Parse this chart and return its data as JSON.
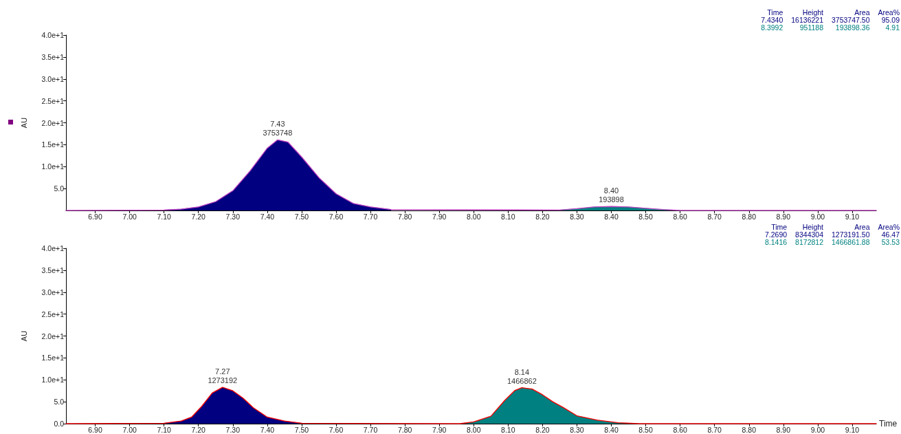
{
  "chart_data": [
    {
      "type": "area",
      "ylabel": "AU",
      "xlim": [
        6.815,
        9.17
      ],
      "ylim": [
        0,
        40
      ],
      "xticks": [
        {
          "value": 6.9,
          "label": "6.90"
        },
        {
          "value": 7.0,
          "label": "7.00"
        },
        {
          "value": 7.1,
          "label": "7.10"
        },
        {
          "value": 7.2,
          "label": "7.20"
        },
        {
          "value": 7.3,
          "label": "7.30"
        },
        {
          "value": 7.4,
          "label": "7.40"
        },
        {
          "value": 7.5,
          "label": "7.50"
        },
        {
          "value": 7.6,
          "label": "7.60"
        },
        {
          "value": 7.7,
          "label": "7.70"
        },
        {
          "value": 7.8,
          "label": "7.80"
        },
        {
          "value": 7.9,
          "label": "7.90"
        },
        {
          "value": 8.0,
          "label": "8.00"
        },
        {
          "value": 8.1,
          "label": "8.10"
        },
        {
          "value": 8.2,
          "label": "8.20"
        },
        {
          "value": 8.3,
          "label": "8.30"
        },
        {
          "value": 8.4,
          "label": "8.40"
        },
        {
          "value": 8.5,
          "label": "8.50"
        },
        {
          "value": 8.6,
          "label": "8.60"
        },
        {
          "value": 8.7,
          "label": "8.70"
        },
        {
          "value": 8.8,
          "label": "8.80"
        },
        {
          "value": 8.9,
          "label": "8.90"
        },
        {
          "value": 9.0,
          "label": "9.00"
        },
        {
          "value": 9.1,
          "label": "9.10"
        }
      ],
      "yticks": [
        {
          "value": 5,
          "label": "5.0"
        },
        {
          "value": 10,
          "label": "1.0e+1"
        },
        {
          "value": 15,
          "label": "1.5e+1"
        },
        {
          "value": 20,
          "label": "2.0e+1"
        },
        {
          "value": 25,
          "label": "2.5e+1"
        },
        {
          "value": 30,
          "label": "3.0e+1"
        },
        {
          "value": 35,
          "label": "3.5e+1"
        },
        {
          "value": 40,
          "label": "4.0e+1"
        }
      ],
      "grid": false,
      "marker": "none",
      "series": [
        {
          "color": "#000080",
          "x": [
            7.1,
            7.15,
            7.2,
            7.25,
            7.3,
            7.35,
            7.4,
            7.43,
            7.46,
            7.5,
            7.55,
            7.6,
            7.65,
            7.7,
            7.76
          ],
          "values": [
            0.1,
            0.3,
            0.8,
            2.0,
            4.5,
            9.0,
            14.2,
            16.1,
            15.6,
            12.2,
            7.5,
            3.8,
            1.6,
            0.8,
            0.2
          ]
        },
        {
          "color": "#008080",
          "x": [
            8.25,
            8.3,
            8.35,
            8.4,
            8.45,
            8.5,
            8.55,
            8.6
          ],
          "values": [
            0.1,
            0.4,
            0.8,
            0.9,
            0.8,
            0.5,
            0.2,
            0
          ]
        },
        {
          "type": "line",
          "color": "#c040c0",
          "x": [
            6.815,
            7.1,
            7.15,
            7.2,
            7.25,
            7.3,
            7.35,
            7.4,
            7.43,
            7.46,
            7.5,
            7.55,
            7.6,
            7.65,
            7.7,
            7.76,
            8.25,
            8.3,
            8.35,
            8.4,
            8.45,
            8.5,
            8.55,
            8.6,
            9.17
          ],
          "values": [
            0,
            0.1,
            0.3,
            0.8,
            2.0,
            4.5,
            9.0,
            14.2,
            16.1,
            15.6,
            12.2,
            7.5,
            3.8,
            1.6,
            0.8,
            0.2,
            0.1,
            0.4,
            0.8,
            0.9,
            0.8,
            0.5,
            0.2,
            0,
            0
          ]
        }
      ],
      "annotations": [
        {
          "text": "7.43\n3753748",
          "x": 7.43,
          "y": 16.1
        },
        {
          "text": "8.40\n193898",
          "x": 8.4,
          "y": 0.95
        },
        "Time Height Area Area%",
        "7.4340 16136221 3753747.50 95.09",
        "8.3992 951188 193898.36 4.91"
      ]
    },
    {
      "type": "area",
      "ylabel": "AU",
      "xlabel": "Time",
      "xlim": [
        6.815,
        9.17
      ],
      "ylim": [
        0,
        40
      ],
      "xticks": [
        {
          "value": 6.9,
          "label": "6.90"
        },
        {
          "value": 7.0,
          "label": "7.00"
        },
        {
          "value": 7.1,
          "label": "7.10"
        },
        {
          "value": 7.2,
          "label": "7.20"
        },
        {
          "value": 7.3,
          "label": "7.30"
        },
        {
          "value": 7.4,
          "label": "7.40"
        },
        {
          "value": 7.5,
          "label": "7.50"
        },
        {
          "value": 7.6,
          "label": "7.60"
        },
        {
          "value": 7.7,
          "label": "7.70"
        },
        {
          "value": 7.8,
          "label": "7.80"
        },
        {
          "value": 7.9,
          "label": "7.90"
        },
        {
          "value": 8.0,
          "label": "8.00"
        },
        {
          "value": 8.1,
          "label": "8.10"
        },
        {
          "value": 8.2,
          "label": "8.20"
        },
        {
          "value": 8.3,
          "label": "8.30"
        },
        {
          "value": 8.4,
          "label": "8.40"
        },
        {
          "value": 8.5,
          "label": "8.50"
        },
        {
          "value": 8.6,
          "label": "8.60"
        },
        {
          "value": 8.7,
          "label": "8.70"
        },
        {
          "value": 8.8,
          "label": "8.80"
        },
        {
          "value": 8.9,
          "label": "8.90"
        },
        {
          "value": 9.0,
          "label": "9.00"
        },
        {
          "value": 9.1,
          "label": "9.10"
        }
      ],
      "yticks": [
        {
          "value": 0,
          "label": "0.0"
        },
        {
          "value": 5,
          "label": "5.0"
        },
        {
          "value": 10,
          "label": "1.0e+1"
        },
        {
          "value": 15,
          "label": "1.5e+1"
        },
        {
          "value": 20,
          "label": "2.0e+1"
        },
        {
          "value": 25,
          "label": "2.5e+1"
        },
        {
          "value": 30,
          "label": "3.0e+1"
        },
        {
          "value": 35,
          "label": "3.5e+1"
        },
        {
          "value": 40,
          "label": "4.0e+1"
        }
      ],
      "grid": false,
      "marker": "none",
      "series": [
        {
          "color": "#000080",
          "x": [
            7.1,
            7.15,
            7.18,
            7.21,
            7.24,
            7.27,
            7.3,
            7.33,
            7.36,
            7.4,
            7.45,
            7.5
          ],
          "values": [
            0.1,
            0.6,
            1.5,
            4.0,
            7.0,
            8.3,
            7.5,
            5.8,
            3.6,
            1.5,
            0.6,
            0.1
          ]
        },
        {
          "color": "#008080",
          "x": [
            7.96,
            8.0,
            8.05,
            8.09,
            8.12,
            8.14,
            8.17,
            8.2,
            8.23,
            8.26,
            8.3,
            8.36,
            8.42,
            8.48
          ],
          "values": [
            0,
            0.4,
            1.7,
            5.3,
            7.6,
            8.2,
            7.9,
            6.6,
            5.0,
            3.7,
            1.8,
            0.8,
            0.2,
            0
          ]
        },
        {
          "type": "line",
          "color": "#ff0000",
          "x": [
            6.815,
            7.1,
            7.15,
            7.18,
            7.21,
            7.24,
            7.27,
            7.3,
            7.33,
            7.36,
            7.4,
            7.45,
            7.5,
            7.96,
            8.0,
            8.05,
            8.09,
            8.12,
            8.14,
            8.17,
            8.2,
            8.23,
            8.26,
            8.3,
            8.36,
            8.42,
            8.48,
            9.17
          ],
          "values": [
            0,
            0.1,
            0.6,
            1.5,
            4.0,
            7.0,
            8.3,
            7.5,
            5.8,
            3.6,
            1.5,
            0.6,
            0.1,
            0,
            0.4,
            1.7,
            5.3,
            7.6,
            8.2,
            7.9,
            6.6,
            5.0,
            3.7,
            1.8,
            0.8,
            0.2,
            0,
            0
          ]
        }
      ],
      "annotations": [
        {
          "text": "7.27\n1273192",
          "x": 7.27,
          "y": 8.3
        },
        {
          "text": "8.14\n1466862",
          "x": 8.14,
          "y": 8.2
        },
        "Time Height Area Area%",
        "7.2690 8344304 1273191.50 46.47",
        "8.1416 8172812 1466861.88 53.53"
      ]
    }
  ]
}
